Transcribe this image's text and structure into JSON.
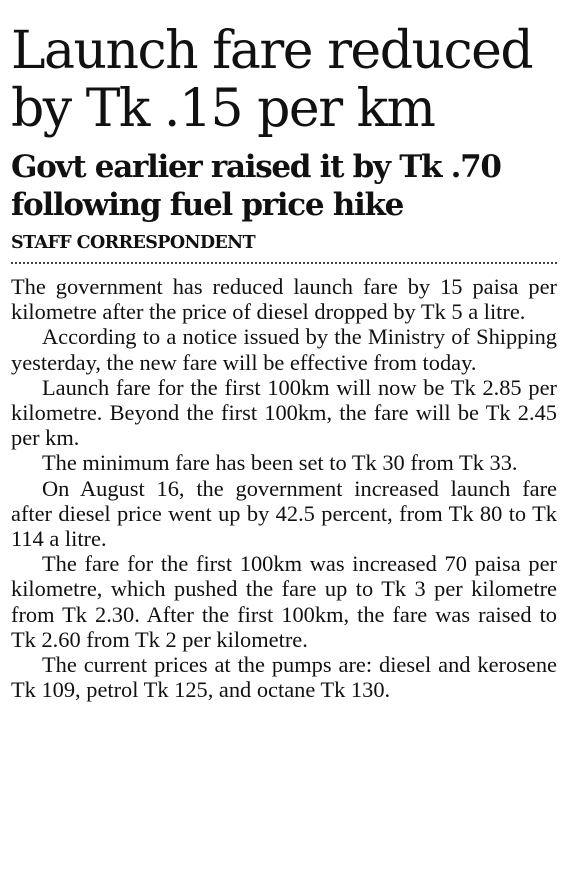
{
  "article": {
    "headline": "Launch fare reduced by Tk .15 per km",
    "subheadline": "Govt earlier raised it by Tk .70 following fuel price hike",
    "byline": "STAFF CORRESPONDENT",
    "paragraphs": [
      "The government has reduced launch fare by 15 paisa per kilometre after the price of diesel dropped by Tk 5 a litre.",
      "According to a notice issued by the Ministry of Shipping yesterday, the new fare will be effective from today.",
      "Launch fare for the first 100km will now be Tk 2.85 per kilometre. Beyond the first 100km, the fare will be Tk 2.45 per km.",
      "The minimum fare has been set to Tk 30 from Tk 33.",
      "On August 16, the government increased launch fare after diesel price went up by 42.5 percent, from Tk 80 to Tk 114 a litre.",
      "The fare for the first 100km was increased 70 paisa per kilometre, which pushed the fare up to Tk 3 per kilometre from Tk 2.30. After the first 100km, the fare was raised to Tk 2.60 from Tk 2 per kilometre.",
      "The current prices at the pumps are: diesel and kerosene Tk 109, petrol Tk 125, and octane Tk 130."
    ]
  }
}
